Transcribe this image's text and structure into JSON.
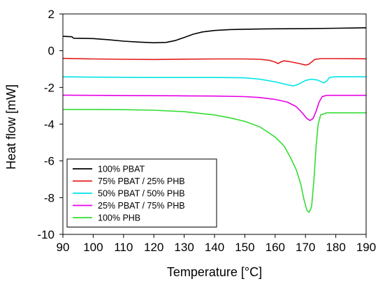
{
  "chart_data": {
    "type": "line",
    "title": "",
    "xlabel": "Temperature [°C]",
    "ylabel": "Heat flow [mW]",
    "xlim": [
      90,
      190
    ],
    "ylim": [
      -10,
      2
    ],
    "xticks": [
      90,
      100,
      110,
      120,
      130,
      140,
      150,
      160,
      170,
      180,
      190
    ],
    "yticks": [
      -10,
      -8,
      -6,
      -4,
      -2,
      0,
      2
    ],
    "x_tick_labels": [
      "90",
      "100",
      "110",
      "120",
      "130",
      "140",
      "150",
      "160",
      "170",
      "180",
      "190"
    ],
    "y_tick_labels": [
      "-10",
      "-8",
      "-6",
      "-4",
      "-2",
      "0",
      "2"
    ],
    "grid": false,
    "legend_position": "bottom-left",
    "series": [
      {
        "name": "100% PBAT",
        "color": "#000000",
        "points": [
          [
            90,
            0.78
          ],
          [
            93,
            0.76
          ],
          [
            93.5,
            0.68
          ],
          [
            100,
            0.66
          ],
          [
            105,
            0.6
          ],
          [
            110,
            0.52
          ],
          [
            115,
            0.47
          ],
          [
            120,
            0.43
          ],
          [
            124,
            0.45
          ],
          [
            127,
            0.55
          ],
          [
            130,
            0.72
          ],
          [
            133,
            0.9
          ],
          [
            136,
            1.02
          ],
          [
            140,
            1.1
          ],
          [
            145,
            1.15
          ],
          [
            150,
            1.17
          ],
          [
            155,
            1.18
          ],
          [
            160,
            1.19
          ],
          [
            170,
            1.2
          ],
          [
            180,
            1.22
          ],
          [
            190,
            1.25
          ]
        ]
      },
      {
        "name": "75% PBAT / 25% PHB",
        "color": "#e31a1c",
        "points": [
          [
            90,
            -0.42
          ],
          [
            100,
            -0.45
          ],
          [
            110,
            -0.47
          ],
          [
            120,
            -0.48
          ],
          [
            130,
            -0.46
          ],
          [
            140,
            -0.45
          ],
          [
            150,
            -0.45
          ],
          [
            155,
            -0.47
          ],
          [
            158,
            -0.52
          ],
          [
            160,
            -0.62
          ],
          [
            161,
            -0.7
          ],
          [
            162,
            -0.6
          ],
          [
            163,
            -0.55
          ],
          [
            165,
            -0.6
          ],
          [
            168,
            -0.7
          ],
          [
            170,
            -0.78
          ],
          [
            171,
            -0.75
          ],
          [
            172,
            -0.62
          ],
          [
            173,
            -0.48
          ],
          [
            175,
            -0.43
          ],
          [
            180,
            -0.43
          ],
          [
            190,
            -0.44
          ]
        ]
      },
      {
        "name": "50% PBAT / 50% PHB",
        "color": "#00e5e5",
        "points": [
          [
            90,
            -1.42
          ],
          [
            100,
            -1.44
          ],
          [
            110,
            -1.45
          ],
          [
            120,
            -1.46
          ],
          [
            130,
            -1.46
          ],
          [
            140,
            -1.46
          ],
          [
            150,
            -1.48
          ],
          [
            155,
            -1.55
          ],
          [
            160,
            -1.7
          ],
          [
            164,
            -1.85
          ],
          [
            166,
            -1.92
          ],
          [
            168,
            -1.8
          ],
          [
            170,
            -1.62
          ],
          [
            172,
            -1.55
          ],
          [
            174,
            -1.6
          ],
          [
            176,
            -1.75
          ],
          [
            177,
            -1.65
          ],
          [
            178,
            -1.45
          ],
          [
            180,
            -1.42
          ],
          [
            190,
            -1.42
          ]
        ]
      },
      {
        "name": "25% PBAT / 75% PHB",
        "color": "#e600e6",
        "points": [
          [
            90,
            -2.42
          ],
          [
            100,
            -2.43
          ],
          [
            110,
            -2.44
          ],
          [
            120,
            -2.45
          ],
          [
            130,
            -2.46
          ],
          [
            140,
            -2.47
          ],
          [
            150,
            -2.5
          ],
          [
            155,
            -2.55
          ],
          [
            160,
            -2.65
          ],
          [
            164,
            -2.8
          ],
          [
            167,
            -3.05
          ],
          [
            169,
            -3.4
          ],
          [
            170.5,
            -3.7
          ],
          [
            171.5,
            -3.8
          ],
          [
            172.5,
            -3.7
          ],
          [
            173.5,
            -3.3
          ],
          [
            174.5,
            -2.8
          ],
          [
            175.5,
            -2.5
          ],
          [
            177,
            -2.43
          ],
          [
            190,
            -2.43
          ]
        ]
      },
      {
        "name": "100% PHB",
        "color": "#33dd33",
        "points": [
          [
            90,
            -3.2
          ],
          [
            95,
            -3.2
          ],
          [
            100,
            -3.2
          ],
          [
            110,
            -3.21
          ],
          [
            120,
            -3.24
          ],
          [
            130,
            -3.32
          ],
          [
            140,
            -3.5
          ],
          [
            145,
            -3.65
          ],
          [
            150,
            -3.85
          ],
          [
            155,
            -4.15
          ],
          [
            160,
            -4.7
          ],
          [
            163,
            -5.2
          ],
          [
            165,
            -5.8
          ],
          [
            167,
            -6.5
          ],
          [
            168.5,
            -7.3
          ],
          [
            169.5,
            -8.1
          ],
          [
            170.5,
            -8.7
          ],
          [
            171.2,
            -8.8
          ],
          [
            172,
            -8.5
          ],
          [
            172.8,
            -7.0
          ],
          [
            173.5,
            -5.2
          ],
          [
            174.2,
            -4.0
          ],
          [
            175,
            -3.5
          ],
          [
            177,
            -3.38
          ],
          [
            190,
            -3.38
          ]
        ]
      }
    ]
  }
}
